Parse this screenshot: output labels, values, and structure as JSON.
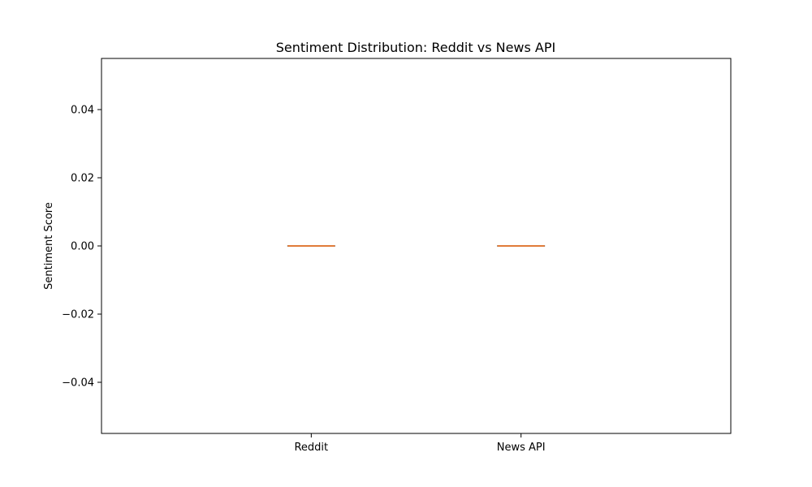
{
  "chart_data": {
    "type": "box",
    "title": "Sentiment Distribution: Reddit vs News API",
    "xlabel": "",
    "ylabel": "Sentiment Score",
    "categories": [
      "Reddit",
      "News API"
    ],
    "boxes": [
      {
        "category": "Reddit",
        "min": 0.0,
        "q1": 0.0,
        "median": 0.0,
        "q3": 0.0,
        "max": 0.0
      },
      {
        "category": "News API",
        "min": 0.0,
        "q1": 0.0,
        "median": 0.0,
        "q3": 0.0,
        "max": 0.0
      }
    ],
    "ylim": [
      -0.055,
      0.055
    ],
    "yticks": [
      -0.04,
      -0.02,
      0.0,
      0.02,
      0.04
    ],
    "ytick_labels": [
      "−0.04",
      "−0.02",
      "0.00",
      "0.02",
      "0.04"
    ],
    "grid": false,
    "colors": {
      "box": "#000000",
      "median": "#e07b39",
      "axes": "#000000"
    }
  }
}
